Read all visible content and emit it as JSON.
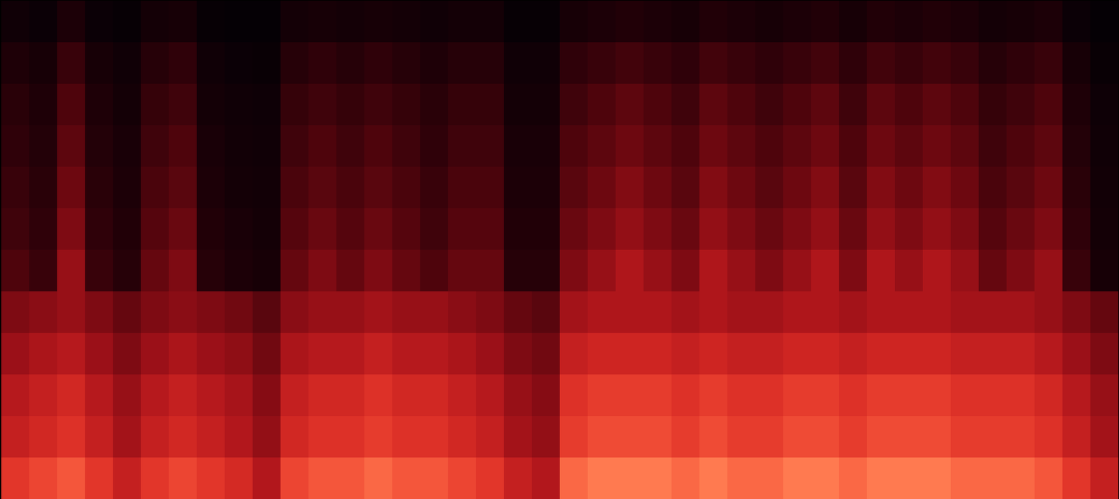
{
  "chart_data": {
    "type": "heatmap",
    "tick_labels": false,
    "cells": [
      [
        9,
        15,
        19,
        21,
        24,
        26,
        30,
        42,
        49,
        56,
        60,
        70
      ],
      [
        7,
        12,
        15,
        17,
        19,
        21,
        24,
        45,
        53,
        60,
        64,
        75
      ],
      [
        14,
        24,
        30,
        34,
        38,
        42,
        48,
        48,
        56,
        64,
        68,
        80
      ],
      [
        7,
        12,
        15,
        17,
        19,
        21,
        24,
        42,
        49,
        56,
        60,
        70
      ],
      [
        5,
        9,
        11,
        13,
        14,
        16,
        18,
        36,
        42,
        48,
        51,
        60
      ],
      [
        11,
        18,
        23,
        26,
        29,
        32,
        36,
        42,
        49,
        56,
        60,
        70
      ],
      [
        12,
        21,
        26,
        30,
        33,
        37,
        42,
        45,
        53,
        60,
        64,
        75
      ],
      [
        5,
        9,
        11,
        13,
        14,
        16,
        18,
        42,
        49,
        56,
        60,
        70
      ],
      [
        4,
        7,
        9,
        10,
        11,
        13,
        14,
        39,
        46,
        52,
        55,
        65
      ],
      [
        4,
        6,
        8,
        9,
        10,
        11,
        12,
        33,
        39,
        44,
        47,
        55
      ],
      [
        11,
        18,
        23,
        26,
        29,
        32,
        36,
        45,
        53,
        60,
        64,
        75
      ],
      [
        12,
        21,
        26,
        30,
        33,
        37,
        42,
        48,
        56,
        64,
        68,
        80
      ],
      [
        11,
        18,
        23,
        26,
        29,
        32,
        36,
        48,
        56,
        64,
        68,
        80
      ],
      [
        12,
        21,
        26,
        30,
        33,
        37,
        42,
        51,
        60,
        68,
        72,
        85
      ],
      [
        11,
        18,
        23,
        26,
        29,
        32,
        36,
        48,
        56,
        64,
        68,
        80
      ],
      [
        9,
        15,
        19,
        21,
        24,
        26,
        30,
        48,
        56,
        64,
        68,
        80
      ],
      [
        11,
        18,
        23,
        26,
        29,
        32,
        36,
        45,
        53,
        60,
        64,
        75
      ],
      [
        11,
        18,
        23,
        26,
        29,
        32,
        36,
        42,
        49,
        56,
        60,
        70
      ],
      [
        5,
        9,
        11,
        13,
        14,
        16,
        18,
        36,
        42,
        48,
        51,
        60
      ],
      [
        5,
        9,
        11,
        13,
        14,
        16,
        18,
        33,
        39,
        44,
        47,
        55
      ],
      [
        12,
        21,
        26,
        30,
        33,
        37,
        42,
        51,
        60,
        68,
        72,
        85
      ],
      [
        14,
        24,
        30,
        34,
        38,
        42,
        48,
        54,
        63,
        72,
        77,
        90
      ],
      [
        16,
        27,
        34,
        38,
        43,
        47,
        54,
        54,
        63,
        72,
        77,
        90
      ],
      [
        14,
        24,
        30,
        34,
        38,
        42,
        48,
        54,
        63,
        72,
        77,
        90
      ],
      [
        12,
        21,
        26,
        30,
        33,
        37,
        42,
        51,
        60,
        68,
        72,
        85
      ],
      [
        16,
        27,
        34,
        38,
        43,
        47,
        54,
        54,
        63,
        72,
        77,
        90
      ],
      [
        14,
        24,
        30,
        34,
        38,
        42,
        48,
        51,
        60,
        68,
        72,
        85
      ],
      [
        12,
        21,
        26,
        30,
        33,
        37,
        42,
        51,
        60,
        68,
        72,
        85
      ],
      [
        14,
        24,
        30,
        34,
        38,
        42,
        48,
        54,
        63,
        72,
        77,
        90
      ],
      [
        16,
        27,
        34,
        38,
        43,
        47,
        54,
        54,
        63,
        72,
        77,
        90
      ],
      [
        12,
        21,
        26,
        30,
        33,
        37,
        42,
        51,
        60,
        68,
        72,
        85
      ],
      [
        16,
        27,
        34,
        38,
        43,
        47,
        54,
        54,
        63,
        72,
        77,
        90
      ],
      [
        14,
        24,
        30,
        34,
        38,
        42,
        48,
        54,
        63,
        72,
        77,
        90
      ],
      [
        16,
        27,
        34,
        38,
        43,
        47,
        54,
        54,
        63,
        72,
        77,
        90
      ],
      [
        14,
        24,
        30,
        34,
        38,
        42,
        48,
        51,
        60,
        68,
        72,
        85
      ],
      [
        11,
        18,
        23,
        26,
        29,
        32,
        36,
        51,
        60,
        68,
        72,
        85
      ],
      [
        12,
        21,
        26,
        30,
        33,
        37,
        42,
        51,
        60,
        68,
        72,
        85
      ],
      [
        14,
        24,
        30,
        34,
        38,
        42,
        48,
        48,
        56,
        64,
        68,
        80
      ],
      [
        7,
        12,
        15,
        17,
        19,
        21,
        24,
        42,
        49,
        56,
        60,
        70
      ],
      [
        4,
        6,
        8,
        9,
        10,
        11,
        12,
        36,
        42,
        48,
        51,
        60
      ]
    ]
  }
}
